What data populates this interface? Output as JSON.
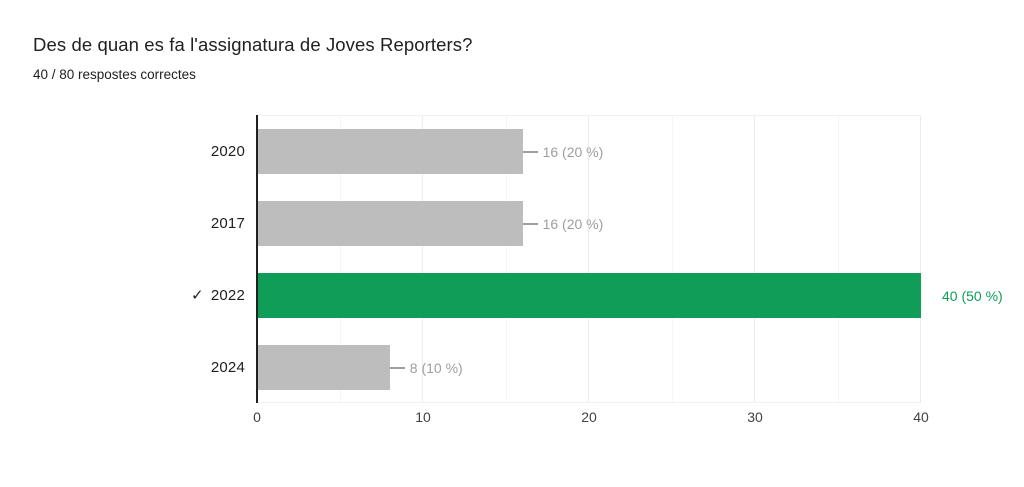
{
  "header": {
    "title": "Des de quan es fa l'assignatura de Joves Reporters?",
    "subtitle": "40 / 80 respostes correctes"
  },
  "chart_data": {
    "type": "bar",
    "orientation": "horizontal",
    "title": "Des de quan es fa l'assignatura de Joves Reporters?",
    "subtitle": "40 / 80 respostes correctes",
    "categories": [
      "2020",
      "2017",
      "2022",
      "2024"
    ],
    "values": [
      16,
      16,
      40,
      8
    ],
    "annotations": [
      "16 (20 %)",
      "16 (20 %)",
      "40 (50 %)",
      "8 (10 %)"
    ],
    "percentages": [
      20,
      20,
      50,
      10
    ],
    "correct_index": 2,
    "correct_category": "2022",
    "correct_marker": "✓",
    "xlabel": "",
    "ylabel": "",
    "xlim": [
      0,
      40
    ],
    "x_ticks": [
      0,
      10,
      20,
      30,
      40
    ],
    "x_minor_ticks": [
      5,
      15,
      25,
      35
    ],
    "grid": true,
    "legend": "none",
    "colors": {
      "bar_default": "#bdbdbd",
      "bar_correct": "#0f9d58",
      "annotation_default": "#9e9e9e",
      "annotation_correct": "#0f9d58",
      "axis_line": "#212121",
      "background": "#ffffff"
    }
  }
}
